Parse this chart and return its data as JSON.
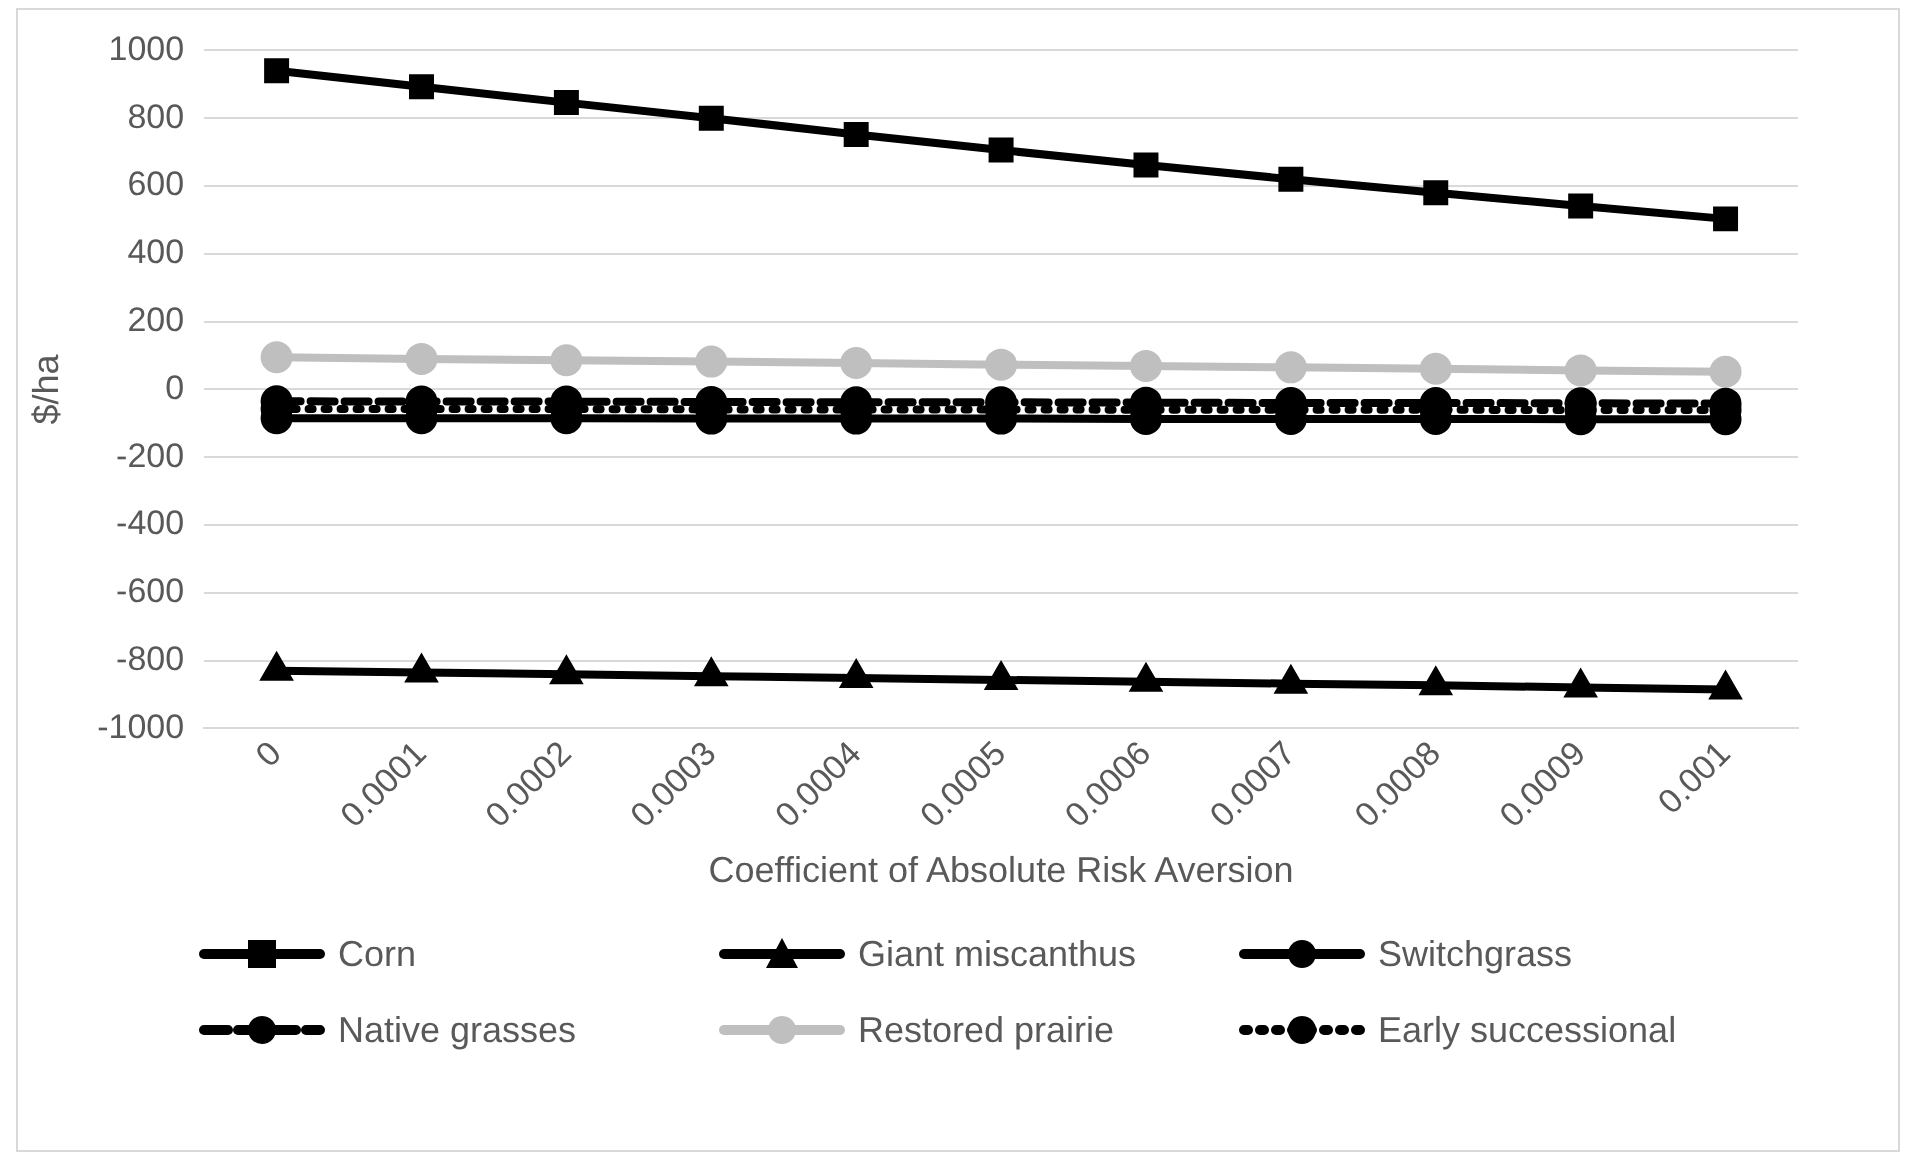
{
  "chart_data": {
    "type": "line",
    "xlabel": "Coefficient of Absolute Risk Aversion",
    "ylabel": "$/ha",
    "categories": [
      "0",
      "0.0001",
      "0.0002",
      "0.0003",
      "0.0004",
      "0.0005",
      "0.0006",
      "0.0007",
      "0.0008",
      "0.0009",
      "0.001"
    ],
    "ylim": [
      -1000,
      1000
    ],
    "yticks": [
      -1000,
      -800,
      -600,
      -400,
      -200,
      0,
      200,
      400,
      600,
      800,
      1000
    ],
    "grid": "y",
    "legend": "bottom",
    "series": [
      {
        "name": "Corn",
        "color": "#000000",
        "marker": "square",
        "line_style": "solid",
        "values": [
          940,
          893,
          846,
          800,
          752,
          706,
          662,
          620,
          580,
          541,
          503
        ]
      },
      {
        "name": "Giant miscanthus",
        "color": "#000000",
        "marker": "triangle",
        "line_style": "solid",
        "values": [
          -830,
          -835,
          -840,
          -846,
          -851,
          -857,
          -862,
          -868,
          -873,
          -879,
          -885
        ]
      },
      {
        "name": "Switchgrass",
        "color": "#000000",
        "marker": "circle",
        "line_style": "solid",
        "values": [
          -85,
          -85,
          -85,
          -86,
          -86,
          -86,
          -87,
          -87,
          -87,
          -88,
          -88
        ]
      },
      {
        "name": "Native grasses",
        "color": "#000000",
        "marker": "circle",
        "line_style": "dashed",
        "values": [
          -35,
          -36,
          -36,
          -37,
          -38,
          -38,
          -39,
          -40,
          -40,
          -41,
          -42
        ]
      },
      {
        "name": "Restored prairie",
        "color": "#bfbfbf",
        "marker": "circle",
        "line_style": "solid",
        "values": [
          95,
          90,
          86,
          82,
          78,
          73,
          69,
          65,
          61,
          56,
          52
        ]
      },
      {
        "name": "Early successional",
        "color": "#000000",
        "marker": "circle",
        "line_style": "dotted",
        "values": [
          -58,
          -58,
          -58,
          -59,
          -59,
          -59,
          -60,
          -60,
          -60,
          -61,
          -61
        ]
      }
    ]
  }
}
